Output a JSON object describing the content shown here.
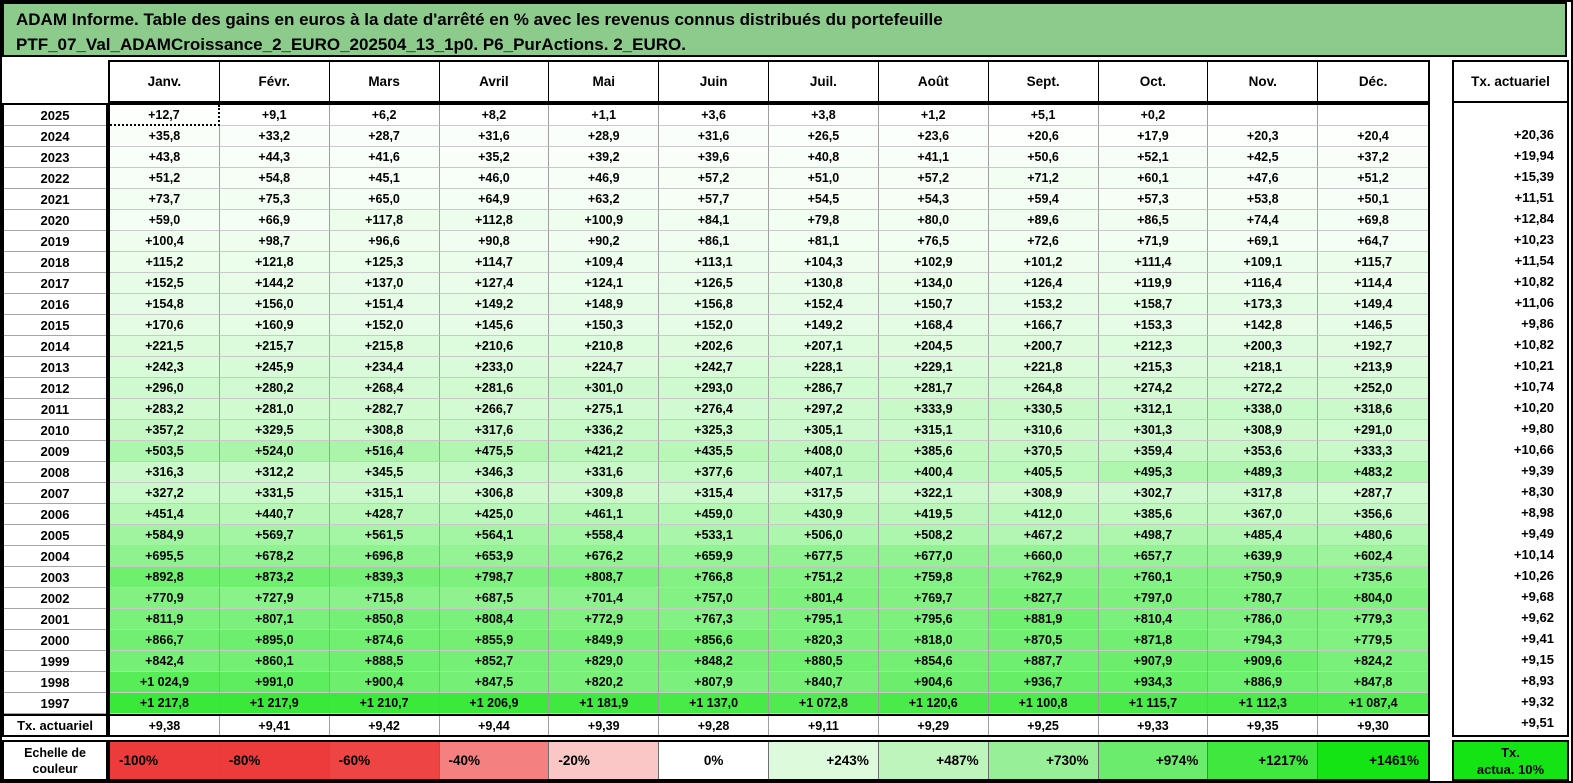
{
  "title": {
    "line1": "ADAM Informe. Table des gains en euros à la date d'arrêté en % avec les revenus connus distribués du portefeuille",
    "line2": "PTF_07_Val_ADAMCroissance_2_EURO_202504_13_1p0. P6_PurActions. 2_EURO."
  },
  "colors": {
    "title_bg": "#8CCB8C",
    "gain_zero": "#FFFFFF",
    "gain_max": "#12E412",
    "gain_max_value": 1461
  },
  "table": {
    "months": [
      "Janv.",
      "Févr.",
      "Mars",
      "Avril",
      "Mai",
      "Juin",
      "Juil.",
      "Août",
      "Sept.",
      "Oct.",
      "Nov.",
      "Déc."
    ],
    "tx_header": "Tx. actuariel",
    "selected_cell": {
      "row_index": 0,
      "col_index": 0
    },
    "rows": [
      {
        "year": "2025",
        "values": [
          "+12,7",
          "+9,1",
          "+6,2",
          "+8,2",
          "+1,1",
          "+3,6",
          "+3,8",
          "+1,2",
          "+5,1",
          "+0,2",
          "",
          ""
        ],
        "tx": ""
      },
      {
        "year": "2024",
        "values": [
          "+35,8",
          "+33,2",
          "+28,7",
          "+31,6",
          "+28,9",
          "+31,6",
          "+26,5",
          "+23,6",
          "+20,6",
          "+17,9",
          "+20,3",
          "+20,4"
        ],
        "tx": "+20,36"
      },
      {
        "year": "2023",
        "values": [
          "+43,8",
          "+44,3",
          "+41,6",
          "+35,2",
          "+39,2",
          "+39,6",
          "+40,8",
          "+41,1",
          "+50,6",
          "+52,1",
          "+42,5",
          "+37,2"
        ],
        "tx": "+19,94"
      },
      {
        "year": "2022",
        "values": [
          "+51,2",
          "+54,8",
          "+45,1",
          "+46,0",
          "+46,9",
          "+57,2",
          "+51,0",
          "+57,2",
          "+71,2",
          "+60,1",
          "+47,6",
          "+51,2"
        ],
        "tx": "+15,39"
      },
      {
        "year": "2021",
        "values": [
          "+73,7",
          "+75,3",
          "+65,0",
          "+64,9",
          "+63,2",
          "+57,7",
          "+54,5",
          "+54,3",
          "+59,4",
          "+57,3",
          "+53,8",
          "+50,1"
        ],
        "tx": "+11,51"
      },
      {
        "year": "2020",
        "values": [
          "+59,0",
          "+66,9",
          "+117,8",
          "+112,8",
          "+100,9",
          "+84,1",
          "+79,8",
          "+80,0",
          "+89,6",
          "+86,5",
          "+74,4",
          "+69,8"
        ],
        "tx": "+12,84"
      },
      {
        "year": "2019",
        "values": [
          "+100,4",
          "+98,7",
          "+96,6",
          "+90,8",
          "+90,2",
          "+86,1",
          "+81,1",
          "+76,5",
          "+72,6",
          "+71,9",
          "+69,1",
          "+64,7"
        ],
        "tx": "+10,23"
      },
      {
        "year": "2018",
        "values": [
          "+115,2",
          "+121,8",
          "+125,3",
          "+114,7",
          "+109,4",
          "+113,1",
          "+104,3",
          "+102,9",
          "+101,2",
          "+111,4",
          "+109,1",
          "+115,7"
        ],
        "tx": "+11,54"
      },
      {
        "year": "2017",
        "values": [
          "+152,5",
          "+144,2",
          "+137,0",
          "+127,4",
          "+124,1",
          "+126,5",
          "+130,8",
          "+134,0",
          "+126,4",
          "+119,9",
          "+116,4",
          "+114,4"
        ],
        "tx": "+10,82"
      },
      {
        "year": "2016",
        "values": [
          "+154,8",
          "+156,0",
          "+151,4",
          "+149,2",
          "+148,9",
          "+156,8",
          "+152,4",
          "+150,7",
          "+153,2",
          "+158,7",
          "+173,3",
          "+149,4"
        ],
        "tx": "+11,06"
      },
      {
        "year": "2015",
        "values": [
          "+170,6",
          "+160,9",
          "+152,0",
          "+145,6",
          "+150,3",
          "+152,0",
          "+149,2",
          "+168,4",
          "+166,7",
          "+153,3",
          "+142,8",
          "+146,5"
        ],
        "tx": "+9,86"
      },
      {
        "year": "2014",
        "values": [
          "+221,5",
          "+215,7",
          "+215,8",
          "+210,6",
          "+210,8",
          "+202,6",
          "+207,1",
          "+204,5",
          "+200,7",
          "+212,3",
          "+200,3",
          "+192,7"
        ],
        "tx": "+10,82"
      },
      {
        "year": "2013",
        "values": [
          "+242,3",
          "+245,9",
          "+234,4",
          "+233,0",
          "+224,7",
          "+242,7",
          "+228,1",
          "+229,1",
          "+221,8",
          "+215,3",
          "+218,1",
          "+213,9"
        ],
        "tx": "+10,21"
      },
      {
        "year": "2012",
        "values": [
          "+296,0",
          "+280,2",
          "+268,4",
          "+281,6",
          "+301,0",
          "+293,0",
          "+286,7",
          "+281,7",
          "+264,8",
          "+274,2",
          "+272,2",
          "+252,0"
        ],
        "tx": "+10,74"
      },
      {
        "year": "2011",
        "values": [
          "+283,2",
          "+281,0",
          "+282,7",
          "+266,7",
          "+275,1",
          "+276,4",
          "+297,2",
          "+333,9",
          "+330,5",
          "+312,1",
          "+338,0",
          "+318,6"
        ],
        "tx": "+10,20"
      },
      {
        "year": "2010",
        "values": [
          "+357,2",
          "+329,5",
          "+308,8",
          "+317,6",
          "+336,2",
          "+325,3",
          "+305,1",
          "+315,1",
          "+310,6",
          "+301,3",
          "+308,9",
          "+291,0"
        ],
        "tx": "+9,80"
      },
      {
        "year": "2009",
        "values": [
          "+503,5",
          "+524,0",
          "+516,4",
          "+475,5",
          "+421,2",
          "+435,5",
          "+408,0",
          "+385,6",
          "+370,5",
          "+359,4",
          "+353,6",
          "+333,3"
        ],
        "tx": "+10,66"
      },
      {
        "year": "2008",
        "values": [
          "+316,3",
          "+312,2",
          "+345,5",
          "+346,3",
          "+331,6",
          "+377,6",
          "+407,1",
          "+400,4",
          "+405,5",
          "+495,3",
          "+489,3",
          "+483,2"
        ],
        "tx": "+9,39"
      },
      {
        "year": "2007",
        "values": [
          "+327,2",
          "+331,5",
          "+315,1",
          "+306,8",
          "+309,8",
          "+315,4",
          "+317,5",
          "+322,1",
          "+308,9",
          "+302,7",
          "+317,8",
          "+287,7"
        ],
        "tx": "+8,30"
      },
      {
        "year": "2006",
        "values": [
          "+451,4",
          "+440,7",
          "+428,7",
          "+425,0",
          "+461,1",
          "+459,0",
          "+430,9",
          "+419,5",
          "+412,0",
          "+385,6",
          "+367,0",
          "+356,6"
        ],
        "tx": "+8,98"
      },
      {
        "year": "2005",
        "values": [
          "+584,9",
          "+569,7",
          "+561,5",
          "+564,1",
          "+558,4",
          "+533,1",
          "+506,0",
          "+508,2",
          "+467,2",
          "+498,7",
          "+485,4",
          "+480,6"
        ],
        "tx": "+9,49"
      },
      {
        "year": "2004",
        "values": [
          "+695,5",
          "+678,2",
          "+696,8",
          "+653,9",
          "+676,2",
          "+659,9",
          "+677,5",
          "+677,0",
          "+660,0",
          "+657,7",
          "+639,9",
          "+602,4"
        ],
        "tx": "+10,14"
      },
      {
        "year": "2003",
        "values": [
          "+892,8",
          "+873,2",
          "+839,3",
          "+798,7",
          "+808,7",
          "+766,8",
          "+751,2",
          "+759,8",
          "+762,9",
          "+760,1",
          "+750,9",
          "+735,6"
        ],
        "tx": "+10,26"
      },
      {
        "year": "2002",
        "values": [
          "+770,9",
          "+727,9",
          "+715,8",
          "+687,5",
          "+701,4",
          "+757,0",
          "+801,4",
          "+769,7",
          "+827,7",
          "+797,0",
          "+780,7",
          "+804,0"
        ],
        "tx": "+9,68"
      },
      {
        "year": "2001",
        "values": [
          "+811,9",
          "+807,1",
          "+850,8",
          "+808,4",
          "+772,9",
          "+767,3",
          "+795,1",
          "+795,6",
          "+881,9",
          "+810,4",
          "+786,0",
          "+779,3"
        ],
        "tx": "+9,62"
      },
      {
        "year": "2000",
        "values": [
          "+866,7",
          "+895,0",
          "+874,6",
          "+855,9",
          "+849,9",
          "+856,6",
          "+820,3",
          "+818,0",
          "+870,5",
          "+871,8",
          "+794,3",
          "+779,5"
        ],
        "tx": "+9,41"
      },
      {
        "year": "1999",
        "values": [
          "+842,4",
          "+860,1",
          "+888,5",
          "+852,7",
          "+829,0",
          "+848,2",
          "+880,5",
          "+854,6",
          "+887,7",
          "+907,9",
          "+909,6",
          "+824,2"
        ],
        "tx": "+9,15"
      },
      {
        "year": "1998",
        "values": [
          "+1 024,9",
          "+991,0",
          "+900,4",
          "+847,5",
          "+820,2",
          "+807,9",
          "+840,7",
          "+904,6",
          "+936,7",
          "+934,3",
          "+886,9",
          "+847,8"
        ],
        "tx": "+8,93"
      },
      {
        "year": "1997",
        "values": [
          "+1 217,8",
          "+1 217,9",
          "+1 210,7",
          "+1 206,9",
          "+1 181,9",
          "+1 137,0",
          "+1 072,8",
          "+1 120,6",
          "+1 100,8",
          "+1 115,7",
          "+1 112,3",
          "+1 087,4"
        ],
        "tx": "+9,32"
      },
      {
        "year": "Tx. actuariel",
        "summary": true,
        "values": [
          "+9,38",
          "+9,41",
          "+9,42",
          "+9,44",
          "+9,39",
          "+9,28",
          "+9,11",
          "+9,29",
          "+9,25",
          "+9,33",
          "+9,35",
          "+9,30"
        ],
        "tx": "+9,51"
      }
    ]
  },
  "scale": {
    "label_line1": "Echelle de",
    "label_line2": "couleur",
    "cells": [
      {
        "label": "-100%",
        "bg": "#ED3B3B",
        "align": "left"
      },
      {
        "label": "-80%",
        "bg": "#ED3B3B",
        "align": "left"
      },
      {
        "label": "-60%",
        "bg": "#EE4444",
        "align": "left"
      },
      {
        "label": "-40%",
        "bg": "#F58080",
        "align": "left"
      },
      {
        "label": "-20%",
        "bg": "#FAC6C6",
        "align": "left"
      },
      {
        "label": "0%",
        "bg": "#FFFFFF",
        "align": "center"
      },
      {
        "label": "+243%",
        "bg": "#DDFADD",
        "align": "right"
      },
      {
        "label": "+487%",
        "bg": "#BDF5BD",
        "align": "right"
      },
      {
        "label": "+730%",
        "bg": "#97F097",
        "align": "right"
      },
      {
        "label": "+974%",
        "bg": "#6CEC6C",
        "align": "right"
      },
      {
        "label": "+1217%",
        "bg": "#3FE73F",
        "align": "right"
      },
      {
        "label": "+1461%",
        "bg": "#14E414",
        "align": "right"
      }
    ],
    "tx_cell": {
      "line1": "Tx.",
      "line2": "actua. 10%",
      "bg": "#14E414"
    }
  }
}
